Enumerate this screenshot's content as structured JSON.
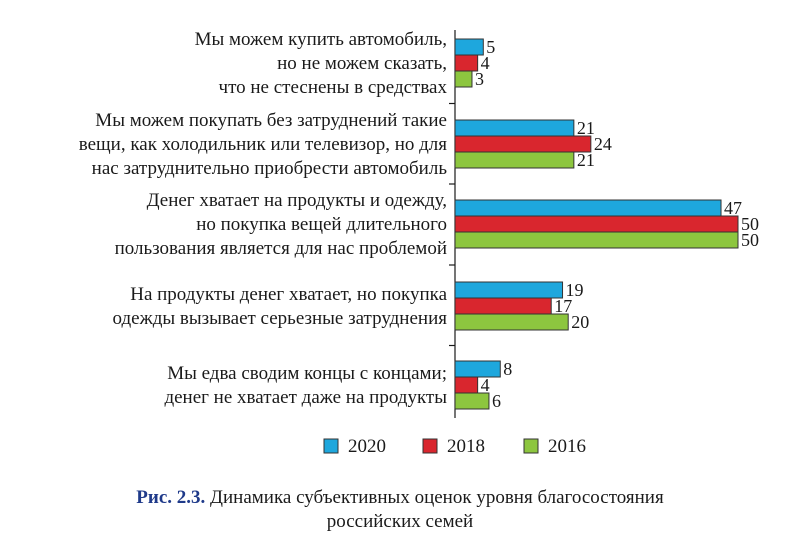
{
  "chart_data": {
    "type": "bar",
    "orientation": "horizontal",
    "categories": [
      [
        "Мы можем купить автомобиль,",
        "но не можем сказать,",
        "что не стеснены в средствах"
      ],
      [
        "Мы можем покупать без затруднений такие",
        "вещи, как холодильник или телевизор, но для",
        "нас затруднительно приобрести автомобиль"
      ],
      [
        "Денег хватает на продукты и одежду,",
        "но покупка вещей длительного",
        "пользования является для нас проблемой"
      ],
      [
        "На продукты денег хватает, но покупка",
        "одежды вызывает серьезные затруднения"
      ],
      [
        "Мы едва сводим концы с концами;",
        "денег не хватает даже на продукты"
      ]
    ],
    "series": [
      {
        "name": "2020",
        "color": "#1ea7dd",
        "values": [
          5,
          21,
          47,
          19,
          8
        ]
      },
      {
        "name": "2018",
        "color": "#d9262e",
        "values": [
          4,
          24,
          50,
          17,
          4
        ]
      },
      {
        "name": "2016",
        "color": "#8dc63f",
        "values": [
          3,
          21,
          50,
          20,
          6
        ]
      }
    ],
    "xlim": [
      0,
      50
    ],
    "grid": false,
    "legend_position": "bottom"
  },
  "caption": {
    "figure_number": "Рис. 2.3.",
    "text_line1": "Динамика субъективных оценок уровня благосостояния",
    "text_line2": "российских семей"
  }
}
